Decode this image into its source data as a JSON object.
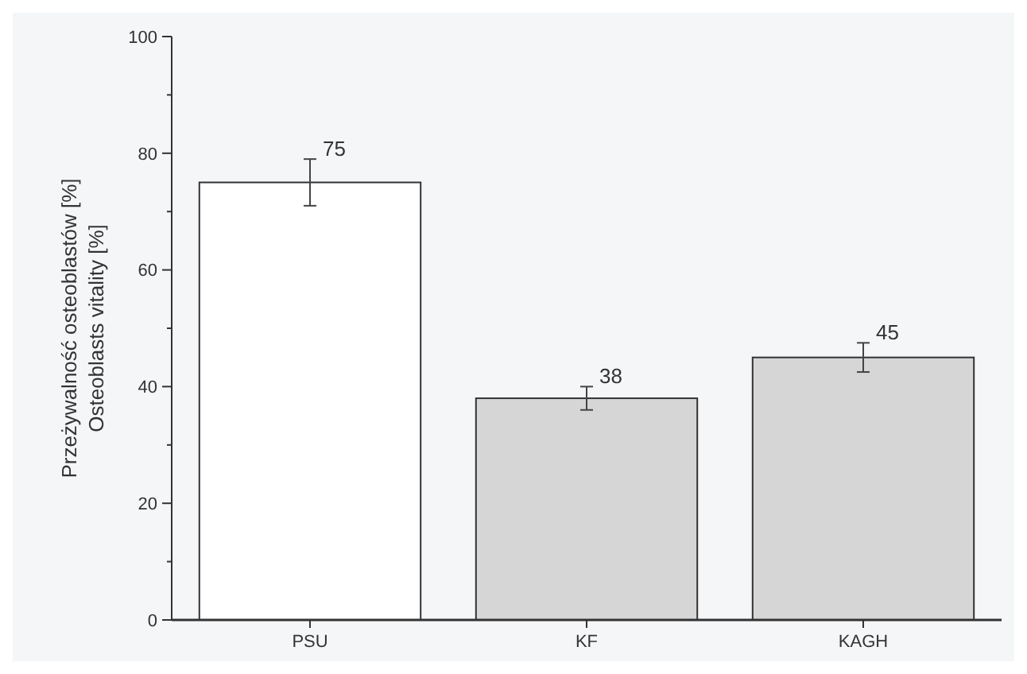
{
  "chart_data": {
    "type": "bar",
    "ylabel": "Przeżywalność osteoblastów [%]\nOsteoblasts vitality [%]",
    "categories": [
      "PSU",
      "KF",
      "KAGH"
    ],
    "values": [
      75,
      38,
      45
    ],
    "errors": [
      4,
      2,
      2.5
    ],
    "colors": [
      "#ffffff",
      "#d6d6d6",
      "#d6d6d6"
    ],
    "ylim": [
      0,
      100
    ],
    "yticks": [
      0,
      {
        "value": 10,
        "label": null
      },
      20,
      {
        "value": 30,
        "label": null
      },
      40,
      {
        "value": 50,
        "label": null
      },
      60,
      {
        "value": 70,
        "label": null
      },
      80,
      {
        "value": 90,
        "label": null
      },
      100
    ],
    "data_labels": true,
    "grid": false
  }
}
